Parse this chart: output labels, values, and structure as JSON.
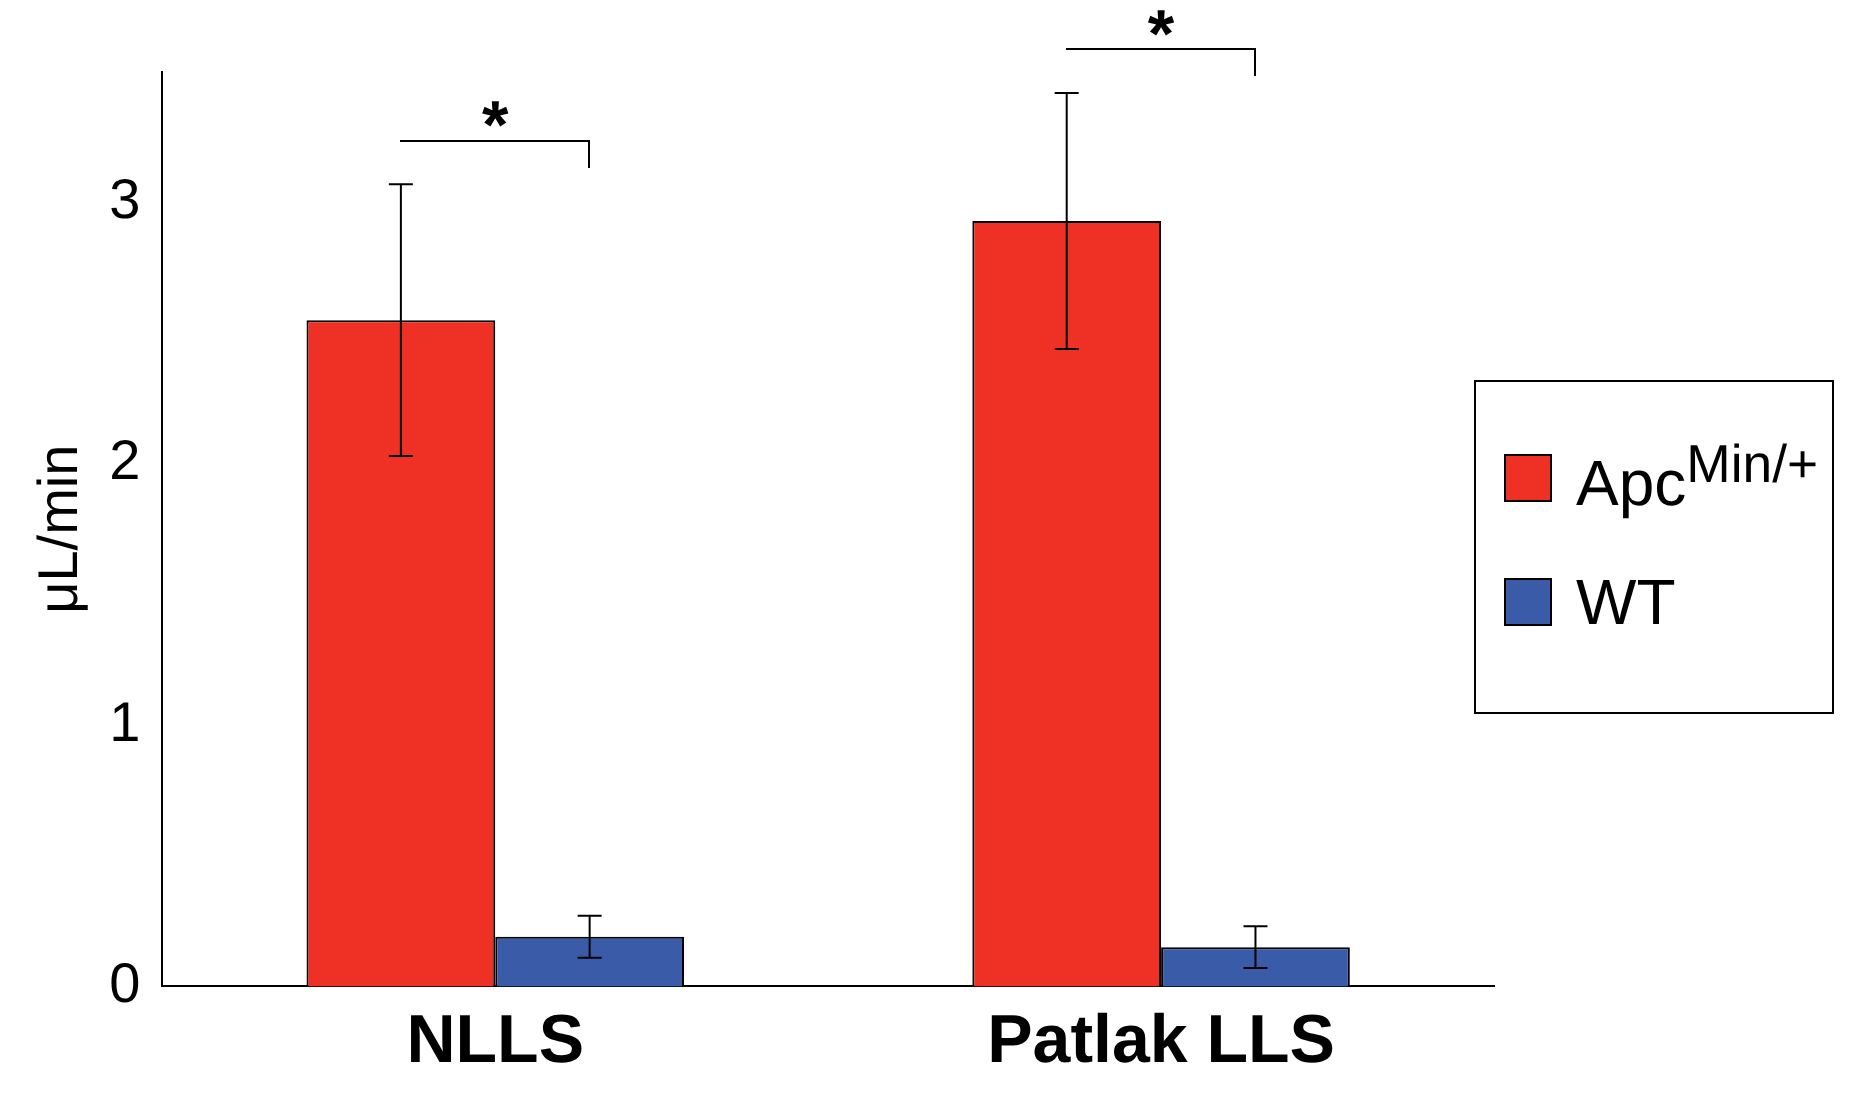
{
  "chart_data": {
    "type": "bar",
    "ylabel": "μL/min",
    "categories": [
      "NLLS",
      "Patlak LLS"
    ],
    "series": [
      {
        "name": "Apc$^{Min/+}$",
        "color": "#ee3124",
        "values": [
          2.55,
          2.93
        ],
        "errors": [
          0.52,
          0.49
        ]
      },
      {
        "name": "WT",
        "color": "#3a5ba8",
        "values": [
          0.19,
          0.15
        ],
        "errors": [
          0.08,
          0.08
        ]
      }
    ],
    "ylim": [
      0,
      3.5
    ],
    "yticks": [
      0,
      1,
      2,
      3
    ],
    "grid": false,
    "legend": "right",
    "annotations": [
      "*",
      "*"
    ]
  }
}
